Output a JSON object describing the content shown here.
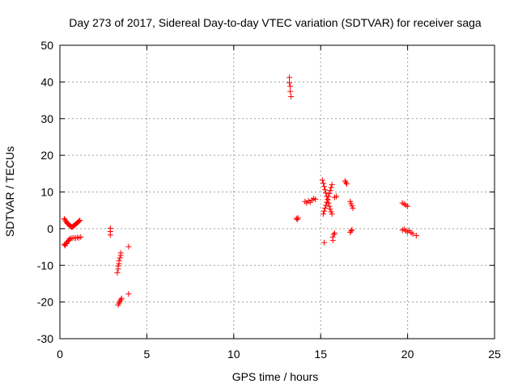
{
  "chart_data": {
    "type": "scatter",
    "title": "Day 273 of 2017, Sidereal Day-to-day VTEC variation (SDTVAR) for receiver saga",
    "xlabel": "GPS time / hours",
    "ylabel": "SDTVAR / TECUs",
    "xlim": [
      0,
      25
    ],
    "ylim": [
      -30,
      50
    ],
    "xticks": [
      0,
      5,
      10,
      15,
      20,
      25
    ],
    "yticks": [
      -30,
      -20,
      -10,
      0,
      10,
      20,
      30,
      40,
      50
    ],
    "xtick_labels": [
      "0",
      "5",
      "10",
      "15",
      "20",
      "25"
    ],
    "ytick_labels": [
      "-30",
      "-20",
      "-10",
      "0",
      "10",
      "20",
      "30",
      "40",
      "50"
    ],
    "grid": true,
    "marker": "+",
    "series": [
      {
        "name": "SDTVAR",
        "color": "#ff0000",
        "points": [
          [
            0.25,
            2.7
          ],
          [
            0.3,
            2.4
          ],
          [
            0.35,
            2.0
          ],
          [
            0.4,
            1.6
          ],
          [
            0.45,
            1.4
          ],
          [
            0.5,
            1.2
          ],
          [
            0.55,
            0.9
          ],
          [
            0.6,
            0.7
          ],
          [
            0.65,
            0.5
          ],
          [
            0.7,
            0.4
          ],
          [
            0.75,
            0.6
          ],
          [
            0.8,
            0.8
          ],
          [
            0.85,
            1.0
          ],
          [
            0.9,
            1.2
          ],
          [
            0.95,
            1.4
          ],
          [
            1.0,
            1.6
          ],
          [
            1.05,
            1.8
          ],
          [
            1.1,
            2.0
          ],
          [
            1.15,
            2.3
          ],
          [
            0.25,
            -4.3
          ],
          [
            0.3,
            -4.6
          ],
          [
            0.35,
            -4.1
          ],
          [
            0.4,
            -3.9
          ],
          [
            0.45,
            -3.5
          ],
          [
            0.5,
            -3.2
          ],
          [
            0.55,
            -2.9
          ],
          [
            0.6,
            -2.7
          ],
          [
            0.7,
            -2.6
          ],
          [
            0.8,
            -2.5
          ],
          [
            0.9,
            -2.6
          ],
          [
            1.0,
            -2.4
          ],
          [
            1.1,
            -2.5
          ],
          [
            1.2,
            -2.3
          ],
          [
            2.9,
            0.1
          ],
          [
            2.9,
            -0.8
          ],
          [
            2.9,
            -1.7
          ],
          [
            3.3,
            -12.0
          ],
          [
            3.35,
            -11.0
          ],
          [
            3.35,
            -10.2
          ],
          [
            3.4,
            -9.5
          ],
          [
            3.4,
            -8.8
          ],
          [
            3.45,
            -8.0
          ],
          [
            3.5,
            -7.3
          ],
          [
            3.5,
            -6.6
          ],
          [
            3.35,
            -20.8
          ],
          [
            3.4,
            -20.3
          ],
          [
            3.45,
            -19.8
          ],
          [
            3.5,
            -19.4
          ],
          [
            3.55,
            -19.0
          ],
          [
            3.95,
            -4.9
          ],
          [
            3.95,
            -17.8
          ],
          [
            13.2,
            41.2
          ],
          [
            13.2,
            39.8
          ],
          [
            13.25,
            38.8
          ],
          [
            13.25,
            37.4
          ],
          [
            13.3,
            36.0
          ],
          [
            13.6,
            2.8
          ],
          [
            13.65,
            2.5
          ],
          [
            13.7,
            2.9
          ],
          [
            14.1,
            7.4
          ],
          [
            14.2,
            7.0
          ],
          [
            14.3,
            7.6
          ],
          [
            14.4,
            7.2
          ],
          [
            14.5,
            7.8
          ],
          [
            14.6,
            8.2
          ],
          [
            14.7,
            8.0
          ],
          [
            15.1,
            13.2
          ],
          [
            15.15,
            12.4
          ],
          [
            15.2,
            11.5
          ],
          [
            15.25,
            10.6
          ],
          [
            15.3,
            9.7
          ],
          [
            15.35,
            8.8
          ],
          [
            15.4,
            7.9
          ],
          [
            15.45,
            7.0
          ],
          [
            15.5,
            6.1
          ],
          [
            15.55,
            5.3
          ],
          [
            15.6,
            4.6
          ],
          [
            15.65,
            4.0
          ],
          [
            15.15,
            4.0
          ],
          [
            15.2,
            4.8
          ],
          [
            15.25,
            5.6
          ],
          [
            15.3,
            6.4
          ],
          [
            15.35,
            7.2
          ],
          [
            15.4,
            8.0
          ],
          [
            15.45,
            8.8
          ],
          [
            15.5,
            9.6
          ],
          [
            15.55,
            10.4
          ],
          [
            15.6,
            11.2
          ],
          [
            15.65,
            12.0
          ],
          [
            15.2,
            -3.8
          ],
          [
            15.7,
            -3.2
          ],
          [
            15.7,
            -2.3
          ],
          [
            15.75,
            -1.6
          ],
          [
            15.8,
            -1.2
          ],
          [
            15.8,
            8.5
          ],
          [
            15.9,
            8.8
          ],
          [
            16.4,
            13.0
          ],
          [
            16.45,
            12.6
          ],
          [
            16.5,
            12.2
          ],
          [
            16.7,
            7.4
          ],
          [
            16.75,
            6.8
          ],
          [
            16.8,
            6.2
          ],
          [
            16.85,
            5.6
          ],
          [
            16.7,
            -1.0
          ],
          [
            16.75,
            -0.6
          ],
          [
            16.8,
            -0.3
          ],
          [
            19.7,
            7.0
          ],
          [
            19.8,
            6.7
          ],
          [
            19.9,
            6.4
          ],
          [
            20.0,
            6.1
          ],
          [
            19.7,
            -0.4
          ],
          [
            19.8,
            -0.1
          ],
          [
            19.9,
            -0.6
          ],
          [
            20.0,
            -0.9
          ],
          [
            20.1,
            -0.5
          ],
          [
            20.2,
            -1.1
          ],
          [
            20.3,
            -1.4
          ],
          [
            20.5,
            -1.9
          ]
        ]
      }
    ]
  }
}
